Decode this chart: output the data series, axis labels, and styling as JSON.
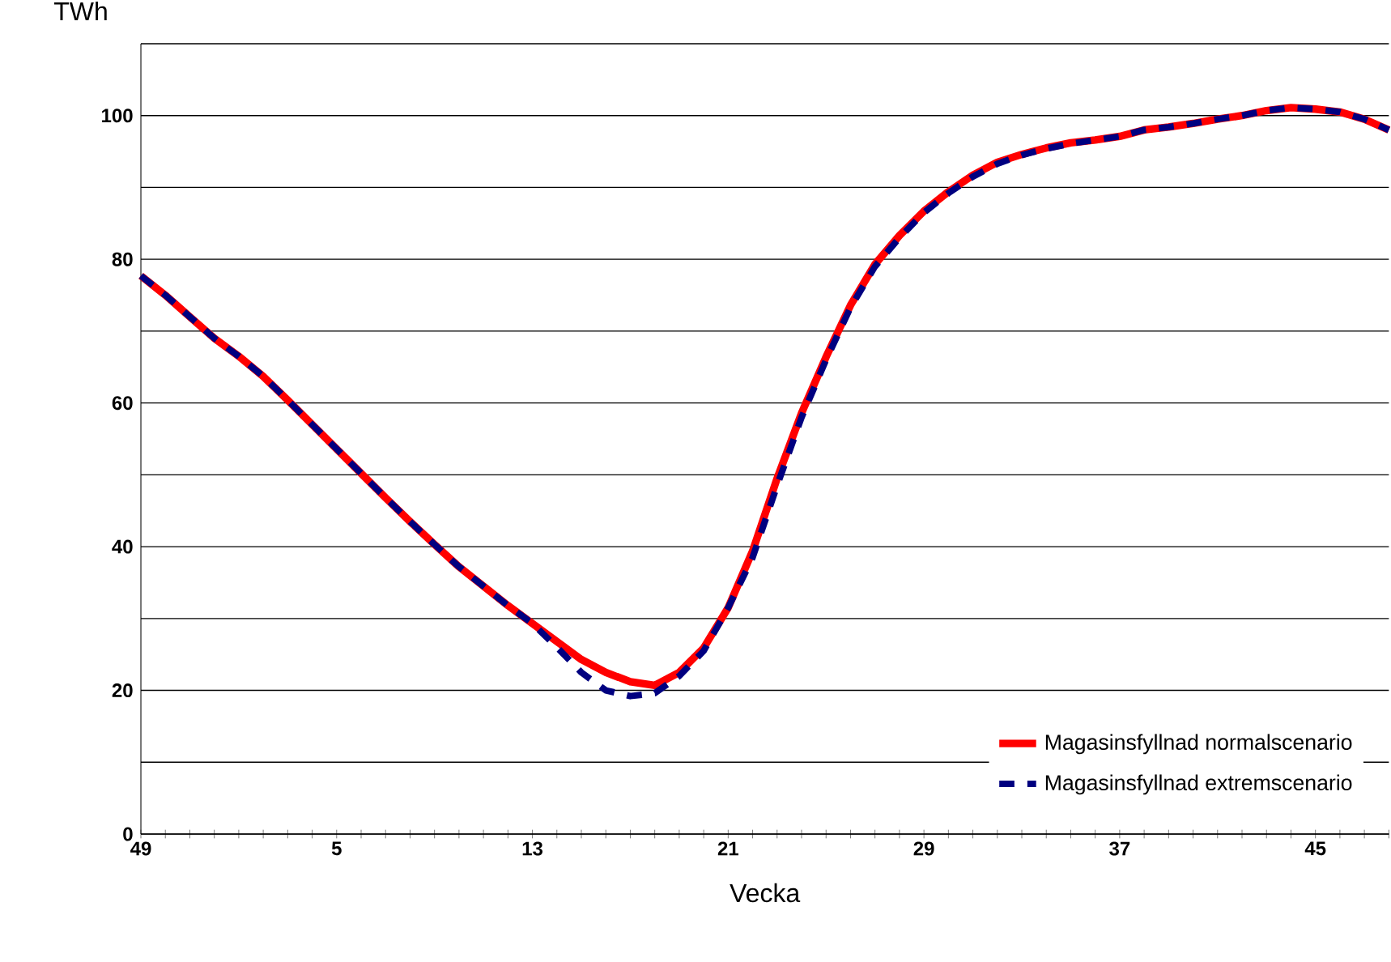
{
  "chart_data": {
    "type": "line",
    "xlabel": "Vecka",
    "ylabel": "TWh",
    "categories": [
      "49",
      null,
      null,
      null,
      null,
      null,
      null,
      null,
      "5",
      null,
      null,
      null,
      null,
      null,
      null,
      null,
      "13",
      null,
      null,
      null,
      null,
      null,
      null,
      null,
      "21",
      null,
      null,
      null,
      null,
      null,
      null,
      null,
      "29",
      null,
      null,
      null,
      null,
      null,
      null,
      null,
      "37",
      null,
      null,
      null,
      null,
      null,
      null,
      null,
      "45",
      null,
      null,
      null
    ],
    "series": [
      {
        "name": "Magasinsfyllnad normalscenario",
        "color": "#ff0000",
        "line_style": "solid",
        "values": [
          77.7,
          75,
          72,
          69,
          66.5,
          63.7,
          60.4,
          57,
          53.6,
          50.2,
          46.8,
          43.5,
          40.3,
          37.2,
          34.5,
          31.8,
          29.3,
          26.8,
          24.3,
          22.5,
          21.2,
          20.7,
          22.5,
          25.9,
          31.5,
          39.4,
          49.5,
          58.6,
          66.4,
          73.6,
          79.3,
          83.3,
          86.7,
          89.4,
          91.7,
          93.5,
          94.6,
          95.5,
          96.2,
          96.6,
          97.1,
          98,
          98.4,
          98.9,
          99.5,
          100,
          100.7,
          101.1,
          100.9,
          100.5,
          99.5,
          98
        ]
      },
      {
        "name": "Magasinsfyllnad extremscenario",
        "color": "#000080",
        "line_style": "dashed",
        "values": [
          77.7,
          75,
          72,
          69,
          66.5,
          63.7,
          60.4,
          57,
          53.6,
          50.2,
          46.8,
          43.5,
          40.3,
          37.2,
          34.5,
          31.8,
          29.3,
          26.0,
          22.5,
          20.0,
          19.2,
          19.6,
          22.0,
          25.5,
          31.5,
          38.5,
          48.5,
          58.0,
          66.0,
          73.3,
          79.0,
          83.0,
          86.5,
          89.2,
          91.5,
          93.3,
          94.5,
          95.4,
          96.1,
          96.6,
          97.1,
          98,
          98.4,
          98.9,
          99.5,
          100,
          100.7,
          101.1,
          100.9,
          100.5,
          99.5,
          98
        ]
      }
    ],
    "ylim": [
      0,
      110
    ],
    "yticks": [
      0,
      {
        "value": 10,
        "label": null
      },
      20,
      {
        "value": 30,
        "label": null
      },
      40,
      {
        "value": 50,
        "label": null
      },
      60,
      {
        "value": 70,
        "label": null
      },
      80,
      {
        "value": 90,
        "label": null
      },
      100,
      {
        "value": 110,
        "label": null
      }
    ],
    "grid": "y",
    "legend": "bottom right",
    "marker": "none"
  }
}
